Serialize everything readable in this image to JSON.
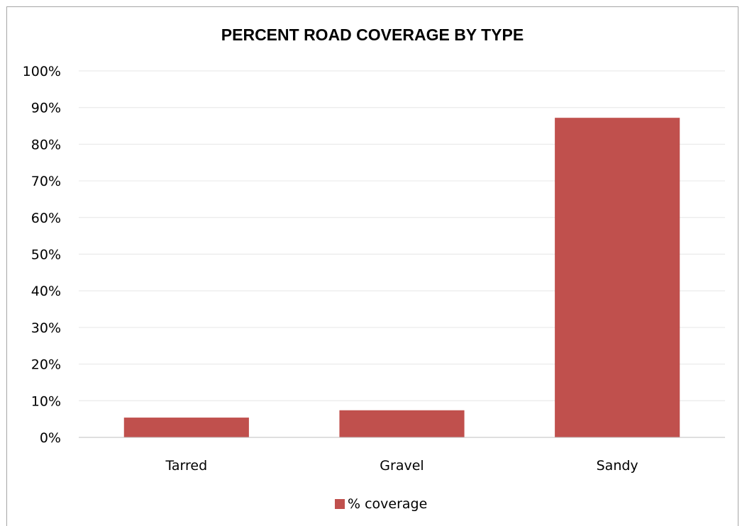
{
  "chart_data": {
    "type": "bar",
    "title": "PERCENT ROAD COVERAGE BY TYPE",
    "categories": [
      "Tarred",
      "Gravel",
      "Sandy"
    ],
    "series": [
      {
        "name": "% coverage",
        "values": [
          5.4,
          7.4,
          87.2
        ],
        "color": "#c0504d"
      }
    ],
    "ylim": [
      0,
      100
    ],
    "yticks": [
      0,
      10,
      20,
      30,
      40,
      50,
      60,
      70,
      80,
      90,
      100
    ],
    "ytick_labels": [
      "0%",
      "10%",
      "20%",
      "30%",
      "40%",
      "50%",
      "60%",
      "70%",
      "80%",
      "90%",
      "100%"
    ],
    "grid": true,
    "legend_position": "bottom"
  }
}
